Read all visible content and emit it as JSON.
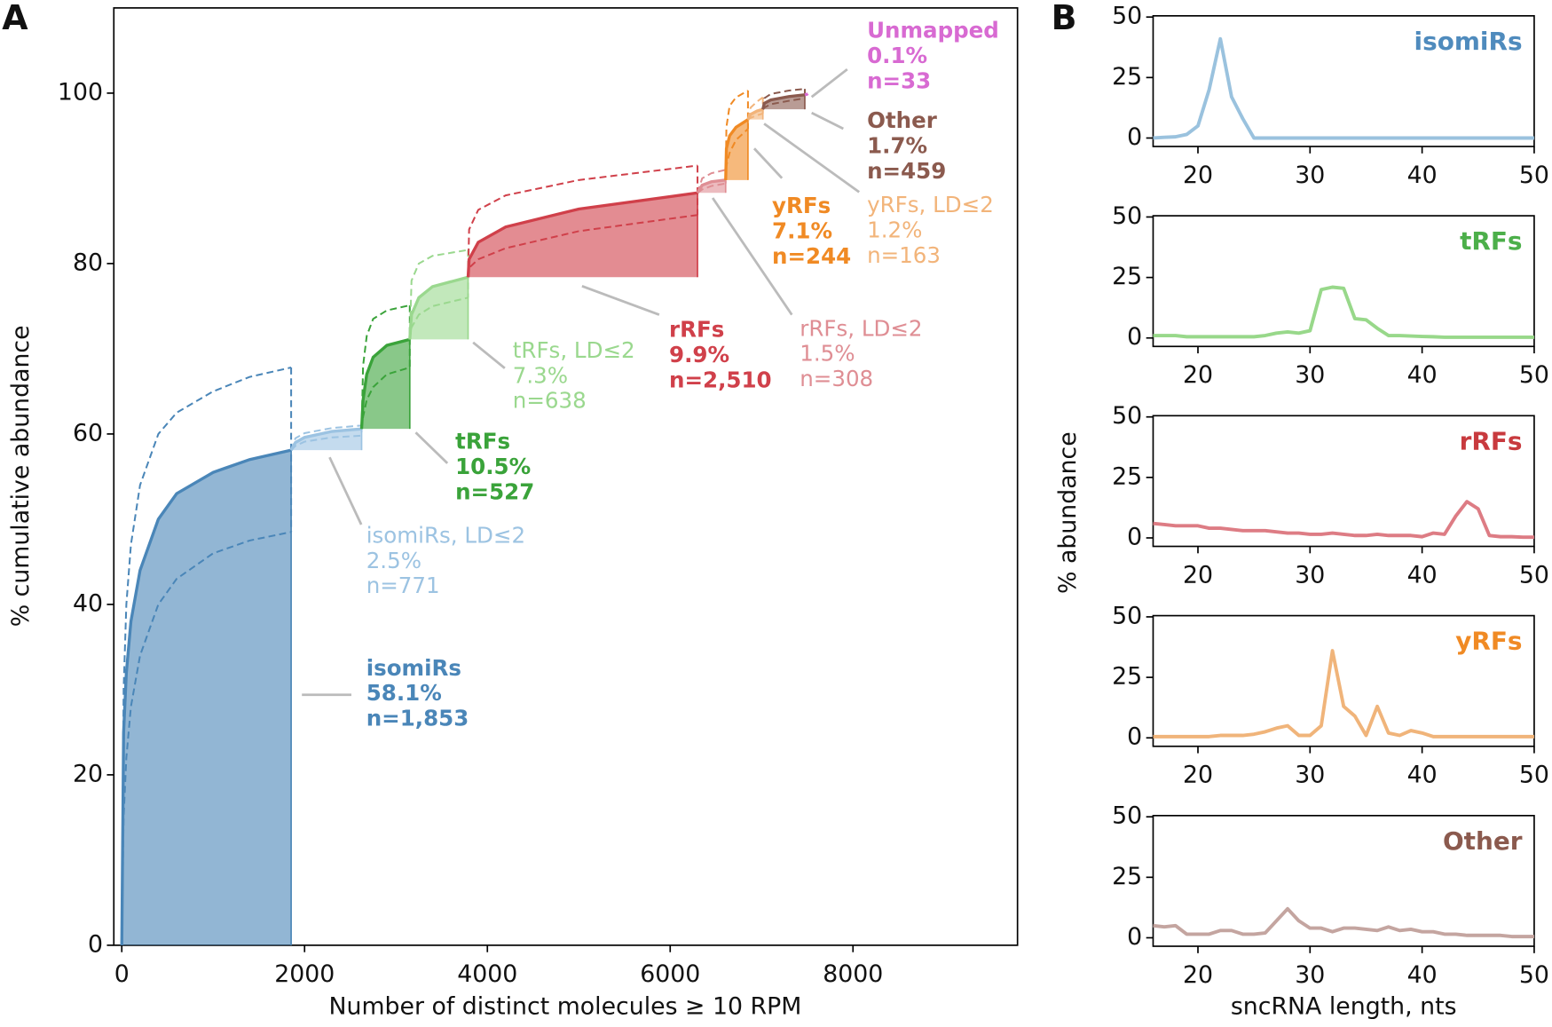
{
  "chart_data": [
    {
      "type": "area",
      "panel": "A",
      "xlabel": "Number of distinct molecules ≥ 10 RPM",
      "ylabel": "% cumulative abundance",
      "xlim": [
        -87,
        9800
      ],
      "ylim": [
        0,
        110
      ],
      "xticks": [
        0,
        2000,
        4000,
        6000,
        8000
      ],
      "yticks": [
        0,
        20,
        40,
        60,
        80,
        100
      ],
      "series": [
        {
          "name": "isomiRs",
          "color": "#4a86b8",
          "bold": true,
          "label_lines": [
            "58.1%",
            "n=1,853"
          ],
          "x": [
            0,
            20,
            50,
            100,
            200,
            400,
            600,
            1000,
            1400,
            1853
          ],
          "values": [
            0,
            25,
            32,
            38,
            44,
            50,
            53,
            55.5,
            57,
            58.1
          ],
          "upper": [
            0,
            30,
            40,
            47,
            54,
            60,
            62.5,
            65,
            66.7,
            67.8
          ],
          "lower": [
            0,
            15,
            22,
            28,
            34,
            40,
            43,
            46,
            47.5,
            48.5
          ]
        },
        {
          "name": "isomiRs, LD≤2",
          "color": "#9cc3e2",
          "bold": false,
          "label_lines": [
            "2.5%",
            "n=771"
          ],
          "x": [
            1853,
            1900,
            2000,
            2300,
            2624
          ],
          "values": [
            58.1,
            59,
            59.6,
            60.3,
            60.6
          ],
          "upper": [
            58.1,
            59.5,
            60.1,
            60.7,
            61
          ],
          "lower": [
            58.1,
            58.6,
            59.1,
            59.6,
            59.8
          ]
        },
        {
          "name": "tRFs",
          "color": "#3aa33a",
          "bold": true,
          "label_lines": [
            "10.5%",
            "n=527"
          ],
          "x": [
            2624,
            2640,
            2680,
            2750,
            2900,
            3151
          ],
          "values": [
            60.6,
            64,
            67,
            69,
            70.4,
            71.1
          ],
          "upper": [
            60.6,
            68,
            71.5,
            73.5,
            74.5,
            75.1
          ],
          "lower": [
            60.6,
            62,
            64,
            65.5,
            67,
            67.8
          ]
        },
        {
          "name": "tRFs, LD≤2",
          "color": "#9ad88e",
          "bold": false,
          "label_lines": [
            "7.3%",
            "n=638"
          ],
          "x": [
            3151,
            3170,
            3250,
            3400,
            3789
          ],
          "values": [
            71.1,
            74,
            76,
            77.3,
            78.4
          ],
          "upper": [
            71.1,
            78,
            80,
            80.9,
            81.6
          ],
          "lower": [
            71.1,
            72.5,
            74,
            75,
            76
          ]
        },
        {
          "name": "rRFs",
          "color": "#d0404a",
          "bold": true,
          "label_lines": [
            "9.9%",
            "n=2,510"
          ],
          "x": [
            3789,
            3800,
            3900,
            4200,
            5000,
            6299
          ],
          "values": [
            78.4,
            80.5,
            82.5,
            84.3,
            86.4,
            88.3
          ],
          "upper": [
            78.4,
            84,
            86.3,
            88,
            89.8,
            91.5
          ],
          "lower": [
            78.4,
            79.5,
            80.5,
            81.8,
            83.8,
            85.7
          ]
        },
        {
          "name": "rRFs, LD≤2",
          "color": "#df8e94",
          "bold": false,
          "label_lines": [
            "1.5%",
            "n=308"
          ],
          "x": [
            6299,
            6350,
            6450,
            6607
          ],
          "values": [
            88.3,
            89.2,
            89.6,
            89.8
          ],
          "upper": [
            88.3,
            90,
            90.6,
            91
          ],
          "lower": [
            88.3,
            88.7,
            89.1,
            89.4
          ]
        },
        {
          "name": "yRFs",
          "color": "#f08a24",
          "bold": true,
          "label_lines": [
            "7.1%",
            "n=244"
          ],
          "x": [
            6607,
            6615,
            6650,
            6720,
            6851
          ],
          "values": [
            89.8,
            93.5,
            95,
            96,
            96.9
          ],
          "upper": [
            89.8,
            96,
            98.5,
            99.5,
            100.3
          ],
          "lower": [
            89.8,
            91.5,
            93,
            94.5,
            95.8
          ]
        },
        {
          "name": "yRFs, LD≤2",
          "color": "#f2b47a",
          "bold": false,
          "label_lines": [
            "1.2%",
            "n=163"
          ],
          "x": [
            6851,
            6880,
            6950,
            7014
          ],
          "values": [
            96.9,
            97.5,
            97.9,
            98.1
          ],
          "upper": [
            96.9,
            98.3,
            99,
            99.5
          ],
          "lower": [
            96.9,
            97.1,
            97.4,
            97.6
          ]
        },
        {
          "name": "Other",
          "color": "#8b5a4e",
          "bold": true,
          "label_lines": [
            "1.7%",
            "n=459"
          ],
          "x": [
            7014,
            7030,
            7100,
            7300,
            7473
          ],
          "values": [
            98.1,
            98.8,
            99.2,
            99.6,
            99.8
          ],
          "upper": [
            98.1,
            99.4,
            99.9,
            100.3,
            100.5
          ],
          "lower": [
            98.1,
            98.3,
            98.7,
            99.1,
            99.4
          ]
        },
        {
          "name": "Unmapped",
          "color": "#d86ad2",
          "bold": true,
          "label_lines": [
            "0.1%",
            "n=33"
          ],
          "x": [
            7473,
            7506
          ],
          "values": [
            99.8,
            99.9
          ]
        }
      ]
    },
    {
      "type": "line",
      "panel": "B",
      "title": "isomiRs",
      "color": "#9ac2de",
      "title_color": "#4f8bbd",
      "xlim": [
        16,
        50
      ],
      "ylim": [
        -3.5,
        50.5
      ],
      "xticks": [
        20,
        30,
        40,
        50
      ],
      "yticks": [
        0,
        25,
        50
      ],
      "x": [
        16,
        17,
        18,
        19,
        20,
        21,
        22,
        23,
        24,
        25,
        26,
        27,
        28,
        29,
        30,
        31,
        32,
        33,
        34,
        35,
        36,
        37,
        38,
        39,
        40,
        41,
        42,
        43,
        44,
        45,
        46,
        47,
        48,
        49,
        50
      ],
      "values": [
        0,
        0.3,
        0.5,
        1.5,
        5,
        20,
        41,
        17,
        8,
        0,
        0,
        0,
        0,
        0,
        0,
        0,
        0,
        0,
        0,
        0,
        0,
        0,
        0,
        0,
        0,
        0,
        0,
        0,
        0,
        0,
        0,
        0,
        0,
        0,
        0
      ]
    },
    {
      "type": "line",
      "title": "tRFs",
      "color": "#98d88a",
      "title_color": "#4caf4a",
      "xlim": [
        16,
        50
      ],
      "ylim": [
        -3.5,
        50.5
      ],
      "xticks": [
        20,
        30,
        40,
        50
      ],
      "yticks": [
        0,
        25,
        50
      ],
      "x": [
        16,
        17,
        18,
        19,
        20,
        21,
        22,
        23,
        24,
        25,
        26,
        27,
        28,
        29,
        30,
        31,
        32,
        33,
        34,
        35,
        36,
        37,
        38,
        39,
        40,
        41,
        42,
        43,
        44,
        45,
        46,
        47,
        48,
        49,
        50
      ],
      "values": [
        1,
        1,
        1,
        0.5,
        0.5,
        0.5,
        0.5,
        0.5,
        0.5,
        0.5,
        1,
        2,
        2.5,
        2,
        3,
        20,
        21,
        20.5,
        8,
        7.5,
        4,
        1,
        1,
        0.8,
        0.6,
        0.5,
        0.3,
        0.3,
        0.3,
        0.3,
        0.3,
        0.3,
        0.3,
        0.3,
        0.3
      ]
    },
    {
      "type": "line",
      "title": "rRFs",
      "color": "#dd7c84",
      "title_color": "#c83a3e",
      "ylabel": "% abundance",
      "xlim": [
        16,
        50
      ],
      "ylim": [
        -3.5,
        50.5
      ],
      "xticks": [
        20,
        30,
        40,
        50
      ],
      "yticks": [
        0,
        25,
        50
      ],
      "x": [
        16,
        17,
        18,
        19,
        20,
        21,
        22,
        23,
        24,
        25,
        26,
        27,
        28,
        29,
        30,
        31,
        32,
        33,
        34,
        35,
        36,
        37,
        38,
        39,
        40,
        41,
        42,
        43,
        44,
        45,
        46,
        47,
        48,
        49,
        50
      ],
      "values": [
        6,
        5.5,
        5,
        5,
        5,
        4,
        4,
        3.5,
        3,
        3,
        3,
        2.5,
        2,
        2,
        1.5,
        1.5,
        2,
        1.5,
        1,
        1,
        1.5,
        1,
        1,
        1,
        0.5,
        2,
        1.5,
        9,
        15,
        12,
        1,
        0.5,
        0.5,
        0.3,
        0.3
      ]
    },
    {
      "type": "line",
      "title": "yRFs",
      "color": "#f0b47a",
      "title_color": "#f08a24",
      "xlim": [
        16,
        50
      ],
      "ylim": [
        -3.5,
        50.5
      ],
      "xticks": [
        20,
        30,
        40,
        50
      ],
      "yticks": [
        0,
        25,
        50
      ],
      "x": [
        16,
        17,
        18,
        19,
        20,
        21,
        22,
        23,
        24,
        25,
        26,
        27,
        28,
        29,
        30,
        31,
        32,
        33,
        34,
        35,
        36,
        37,
        38,
        39,
        40,
        41,
        42,
        43,
        44,
        45,
        46,
        47,
        48,
        49,
        50
      ],
      "values": [
        0.5,
        0.5,
        0.5,
        0.5,
        0.5,
        0.5,
        1,
        1,
        1,
        1.5,
        2.5,
        4,
        5,
        1,
        1,
        5,
        36,
        13,
        9,
        1,
        13,
        2,
        1,
        3,
        2,
        0.5,
        0.5,
        0.5,
        0.5,
        0.5,
        0.5,
        0.5,
        0.5,
        0.5,
        0.5
      ]
    },
    {
      "type": "line",
      "title": "Other",
      "color": "#c4a5a0",
      "title_color": "#8b5a4e",
      "xlabel": "sncRNA length, nts",
      "xlim": [
        16,
        50
      ],
      "ylim": [
        -3.5,
        50.5
      ],
      "xticks": [
        20,
        30,
        40,
        50
      ],
      "yticks": [
        0,
        25,
        50
      ],
      "x": [
        16,
        17,
        18,
        19,
        20,
        21,
        22,
        23,
        24,
        25,
        26,
        27,
        28,
        29,
        30,
        31,
        32,
        33,
        34,
        35,
        36,
        37,
        38,
        39,
        40,
        41,
        42,
        43,
        44,
        45,
        46,
        47,
        48,
        49,
        50
      ],
      "values": [
        5,
        4.5,
        5,
        1.5,
        1.5,
        1.5,
        3,
        3,
        1.5,
        1.5,
        2,
        7,
        12,
        7,
        4,
        4,
        2.5,
        4,
        4,
        3.5,
        3,
        4.5,
        3,
        3.5,
        2.5,
        2.5,
        1.5,
        1.5,
        1,
        1,
        1,
        1,
        0.5,
        0.5,
        0.5
      ]
    }
  ]
}
